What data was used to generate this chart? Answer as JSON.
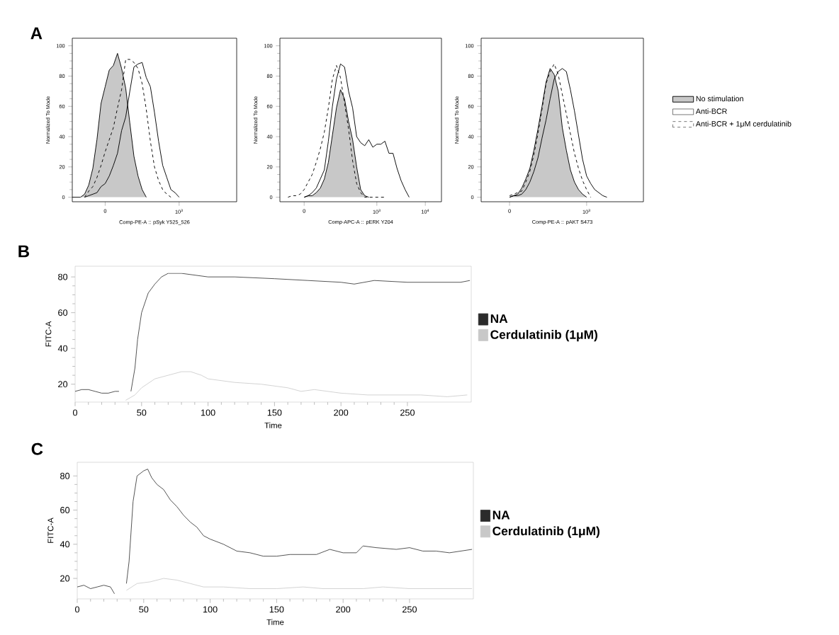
{
  "chart_data": [
    {
      "type": "line",
      "title": "A",
      "xlabel": "Comp-PE-A :: pSyk Y525_526",
      "ylabel": "Normalized To Mode",
      "ylim": [
        -3,
        105
      ],
      "yticks": [
        0,
        20,
        40,
        60,
        80,
        100
      ],
      "categories": [
        null,
        null,
        null,
        null,
        null,
        null,
        null,
        null,
        "0",
        null,
        null,
        null,
        null,
        null,
        null,
        null,
        null,
        null,
        null,
        null,
        null,
        null,
        null,
        null,
        null,
        null,
        "10$^{3}$",
        null,
        null,
        null,
        null,
        null,
        null,
        null,
        null,
        null,
        null,
        null,
        null,
        null,
        null
      ],
      "series": [
        {
          "type": "area",
          "color": "#c8c8c8",
          "values": [
            0,
            0,
            0,
            2,
            8,
            19,
            38,
            62,
            73,
            84,
            87,
            95,
            85,
            72,
            49,
            27,
            14,
            5,
            0,
            null,
            null,
            null,
            null,
            null,
            null,
            null,
            null,
            null,
            null,
            null,
            null,
            null,
            null,
            null,
            null,
            null,
            null,
            null,
            null,
            null,
            null
          ]
        },
        {
          "color": "#000000",
          "line_style": "solid",
          "values": [
            null,
            null,
            null,
            0,
            1,
            2,
            3,
            7,
            9,
            14,
            21,
            29,
            44,
            53,
            70,
            86,
            88,
            89,
            79,
            73,
            56,
            37,
            21,
            13,
            5,
            3,
            0,
            null,
            null,
            null,
            null,
            null,
            null,
            null,
            null,
            null,
            null,
            null,
            null,
            null,
            null
          ]
        },
        {
          "color": "#000000",
          "line_style": "dashed",
          "values": [
            null,
            null,
            null,
            0,
            4,
            7,
            13,
            21,
            30,
            38,
            46,
            59,
            71,
            91,
            91,
            89,
            85,
            75,
            58,
            37,
            20,
            11,
            5,
            2,
            0,
            null,
            null,
            null,
            null,
            null,
            null,
            null,
            null,
            null,
            null,
            null,
            null,
            null,
            null,
            null,
            null
          ]
        }
      ]
    },
    {
      "type": "line",
      "xlabel": "Comp-APC-A :: pERK Y204",
      "ylabel": "Normalized To Mode",
      "ylim": [
        -3,
        105
      ],
      "yticks": [
        0,
        20,
        40,
        60,
        80,
        100
      ],
      "categories": [
        null,
        null,
        null,
        null,
        null,
        null,
        "0",
        null,
        null,
        null,
        null,
        null,
        null,
        null,
        null,
        null,
        null,
        null,
        null,
        null,
        null,
        null,
        null,
        null,
        "10$^{3}$",
        null,
        null,
        null,
        null,
        null,
        null,
        null,
        null,
        null,
        null,
        null,
        "10$^{4}$",
        null,
        null,
        null,
        null
      ],
      "series": [
        {
          "type": "area",
          "color": "#c8c8c8",
          "values": [
            null,
            null,
            null,
            null,
            null,
            null,
            0,
            1,
            1,
            3,
            6,
            12,
            23,
            41,
            59,
            71,
            65,
            50,
            38,
            20,
            5,
            1,
            0,
            null,
            null,
            null,
            null,
            null,
            null,
            null,
            null,
            null,
            null,
            null,
            null,
            null,
            null,
            null,
            null,
            null,
            null
          ]
        },
        {
          "color": "#000000",
          "line_style": "solid",
          "values": [
            null,
            null,
            null,
            null,
            null,
            null,
            0,
            1,
            3,
            6,
            12,
            18,
            37,
            60,
            78,
            88,
            86,
            70,
            59,
            40,
            36,
            34,
            38,
            33,
            35,
            35,
            37,
            29,
            29,
            19,
            11,
            5,
            0,
            null,
            null,
            null,
            null,
            null,
            null,
            null,
            null
          ]
        },
        {
          "color": "#000000",
          "line_style": "dashed",
          "values": [
            null,
            null,
            0,
            1,
            1,
            2,
            5,
            10,
            15,
            23,
            32,
            43,
            59,
            78,
            87,
            79,
            62,
            45,
            24,
            9,
            3,
            0,
            0,
            0,
            0,
            0,
            0,
            null,
            null,
            null,
            null,
            null,
            null,
            null,
            null,
            null,
            null,
            null,
            null,
            null,
            null
          ]
        }
      ]
    },
    {
      "type": "line",
      "xlabel": "Comp-PE-A :: pAKT S473",
      "ylabel": "Normalized To Mode",
      "ylim": [
        -3,
        105
      ],
      "yticks": [
        0,
        20,
        40,
        60,
        80,
        100
      ],
      "legend": "right",
      "categories": [
        null,
        null,
        null,
        null,
        null,
        null,
        null,
        "0",
        null,
        null,
        null,
        null,
        null,
        null,
        null,
        null,
        null,
        null,
        null,
        null,
        null,
        null,
        null,
        null,
        null,
        null,
        "10$^{3}$",
        null,
        null,
        null,
        null,
        null,
        null,
        null,
        null,
        null,
        null,
        null,
        null,
        null,
        null
      ],
      "series": [
        {
          "type": "area",
          "name": "No stimulation",
          "color": "#c8c8c8",
          "values": [
            null,
            null,
            null,
            null,
            null,
            null,
            null,
            0,
            1,
            2,
            6,
            12,
            19,
            31,
            45,
            60,
            76,
            85,
            81,
            70,
            46,
            31,
            18,
            10,
            5,
            2,
            0,
            null,
            null,
            null,
            null,
            null,
            null,
            null,
            null,
            null,
            null,
            null,
            null,
            null,
            null
          ]
        },
        {
          "name": "Anti-BCR",
          "color": "#000000",
          "line_style": "solid",
          "values": [
            null,
            null,
            null,
            null,
            null,
            null,
            null,
            0,
            1,
            1,
            2,
            5,
            10,
            17,
            26,
            39,
            51,
            65,
            78,
            83,
            85,
            83,
            71,
            57,
            41,
            25,
            14,
            9,
            5,
            3,
            1,
            0,
            null,
            null,
            null,
            null,
            null,
            null,
            null,
            null,
            null
          ]
        },
        {
          "name": "Anti-BCR + 1μM cerdulatinib",
          "color": "#000000",
          "line_style": "dashed",
          "values": [
            null,
            null,
            null,
            null,
            null,
            null,
            null,
            1,
            2,
            3,
            4,
            10,
            17,
            28,
            42,
            58,
            75,
            83,
            88,
            81,
            68,
            55,
            42,
            29,
            19,
            11,
            5,
            0,
            null,
            null,
            null,
            null,
            null,
            null,
            null,
            null,
            null,
            null,
            null,
            null,
            null
          ]
        }
      ]
    },
    {
      "type": "line",
      "title": "B",
      "xlabel": "Time",
      "ylabel": "FITC-A",
      "xlim": [
        0,
        298
      ],
      "ylim": [
        10,
        86
      ],
      "xticks": [
        0,
        50,
        100,
        150,
        200,
        250
      ],
      "yticks": [
        20,
        40,
        60,
        80
      ],
      "legend": "right",
      "series": [
        {
          "name": "NA",
          "color": "#2b2b2b",
          "x": [
            0,
            5,
            10,
            15,
            20,
            25,
            30,
            33,
            37,
            42,
            45,
            47,
            50,
            55,
            60,
            65,
            70,
            80,
            90,
            100,
            120,
            150,
            175,
            200,
            210,
            225,
            250,
            270,
            290,
            297
          ],
          "values": [
            16,
            17,
            17,
            16,
            15,
            15,
            16,
            16,
            null,
            16,
            29,
            45,
            60,
            71,
            76,
            80,
            82,
            82,
            81,
            80,
            80,
            79,
            78,
            77,
            76,
            78,
            77,
            77,
            77,
            78
          ]
        },
        {
          "name": "Cerdulatinib (1μM)",
          "color": "#c8c8c8",
          "x": [
            38,
            45,
            50,
            60,
            70,
            80,
            87,
            95,
            100,
            120,
            140,
            160,
            170,
            180,
            190,
            200,
            220,
            240,
            260,
            280,
            295
          ],
          "values": [
            11,
            14,
            18,
            23,
            25,
            27,
            27,
            25,
            23,
            21,
            20,
            18,
            16,
            17,
            16,
            15,
            14,
            14,
            14,
            13,
            14
          ]
        }
      ]
    },
    {
      "type": "line",
      "title": "C",
      "xlabel": "Time",
      "ylabel": "FITC-A",
      "xlim": [
        0,
        298
      ],
      "ylim": [
        8,
        88
      ],
      "xticks": [
        0,
        50,
        100,
        150,
        200,
        250
      ],
      "yticks": [
        20,
        40,
        60,
        80
      ],
      "legend": "right",
      "series": [
        {
          "name": "NA",
          "color": "#2b2b2b",
          "x": [
            0,
            5,
            10,
            15,
            20,
            25,
            28,
            32,
            37,
            39,
            42,
            45,
            50,
            53,
            56,
            60,
            65,
            70,
            75,
            80,
            85,
            90,
            95,
            100,
            110,
            120,
            130,
            140,
            150,
            160,
            170,
            180,
            190,
            200,
            210,
            215,
            225,
            240,
            250,
            260,
            270,
            280,
            297
          ],
          "values": [
            15,
            16,
            14,
            15,
            16,
            15,
            11,
            null,
            17,
            30,
            65,
            80,
            83,
            84,
            79,
            75,
            72,
            66,
            62,
            57,
            53,
            50,
            45,
            43,
            40,
            36,
            35,
            33,
            33,
            34,
            34,
            34,
            37,
            35,
            35,
            39,
            38,
            37,
            38,
            36,
            36,
            35,
            37
          ]
        },
        {
          "name": "Cerdulatinib (1μM)",
          "color": "#c8c8c8",
          "x": [
            37,
            45,
            55,
            65,
            75,
            85,
            95,
            110,
            130,
            150,
            170,
            185,
            200,
            215,
            230,
            250,
            270,
            297
          ],
          "values": [
            13,
            17,
            18,
            20,
            19,
            17,
            15,
            15,
            14,
            14,
            15,
            14,
            14,
            14,
            15,
            14,
            14,
            14
          ]
        }
      ]
    }
  ]
}
